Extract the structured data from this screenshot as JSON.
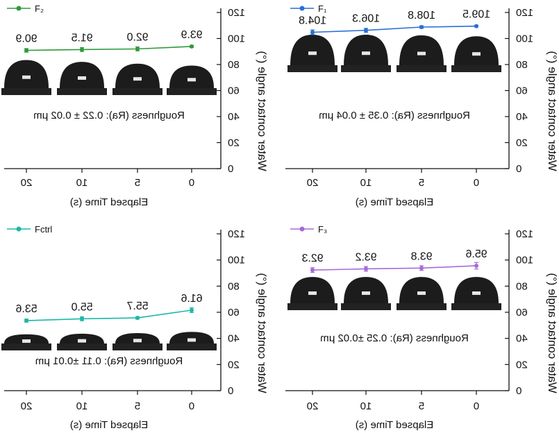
{
  "chart_data": [
    {
      "type": "line",
      "panel": "top-left",
      "legend": "F₂",
      "color": "#2e9a3a",
      "x": [
        0,
        5,
        10,
        20
      ],
      "x_tick_labels": [
        "0",
        "5",
        "10",
        "20"
      ],
      "values": [
        93.9,
        92.0,
        91.5,
        90.9
      ],
      "value_labels": [
        "93.9",
        "92.0",
        "91.5",
        "90.9"
      ],
      "errors": [
        0.8,
        1.5,
        1.5,
        1.4
      ],
      "roughness_text": "Roughness (Ra): 0.22 ± 0.02 μm",
      "xlabel": "Elapsed Time (s)",
      "ylabel": "Water contact angle (°)",
      "ylim": [
        0,
        120
      ],
      "yticks": [
        0,
        20,
        40,
        60,
        80,
        100,
        120
      ],
      "droplet_height": [
        0.74,
        0.8,
        0.86,
        0.92
      ]
    },
    {
      "type": "line",
      "panel": "top-right",
      "legend": "F₁",
      "color": "#2a6fd6",
      "x": [
        0,
        5,
        10,
        20
      ],
      "x_tick_labels": [
        "0",
        "5",
        "10",
        "20"
      ],
      "values": [
        109.5,
        108.8,
        106.3,
        104.8
      ],
      "value_labels": [
        "109.5",
        "108.8",
        "106.3",
        "104.8"
      ],
      "errors": [
        0.7,
        1.0,
        1.5,
        1.8
      ],
      "roughness_text": "Roughness (Ra): 0.35 ± 0.04 μm",
      "xlabel": "Elapsed Time (s)",
      "ylabel": "Water contact angle (°)",
      "ylim": [
        0,
        120
      ],
      "yticks": [
        0,
        20,
        40,
        60,
        80,
        100,
        120
      ],
      "droplet_height": [
        0.95,
        0.98,
        1.0,
        1.0
      ]
    },
    {
      "type": "line",
      "panel": "bottom-left",
      "legend": "Fctrl",
      "color": "#19b8a6",
      "x": [
        0,
        5,
        10,
        20
      ],
      "x_tick_labels": [
        "0",
        "5",
        "10",
        "20"
      ],
      "values": [
        61.6,
        55.7,
        55.0,
        53.6
      ],
      "value_labels": [
        "61.6",
        "55.7",
        "55.0",
        "53.6"
      ],
      "errors": [
        1.8,
        0.9,
        1.5,
        1.2
      ],
      "roughness_text": "Roughness (Ra): 0.11 ±0.01 μm",
      "xlabel": "Elapsed Time (s)",
      "ylabel": "Water contact angle (°)",
      "ylim": [
        0,
        120
      ],
      "yticks": [
        0,
        20,
        40,
        60,
        80,
        100,
        120
      ],
      "droplet_height": [
        0.38,
        0.34,
        0.32,
        0.3
      ]
    },
    {
      "type": "line",
      "panel": "bottom-right",
      "legend": "F₃",
      "color": "#a86ad6",
      "x": [
        0,
        5,
        10,
        20
      ],
      "x_tick_labels": [
        "0",
        "5",
        "10",
        "20"
      ],
      "values": [
        95.6,
        93.8,
        93.2,
        92.3
      ],
      "value_labels": [
        "95.6",
        "93.8",
        "93.2",
        "92.3"
      ],
      "errors": [
        2.5,
        1.8,
        1.8,
        1.8
      ],
      "roughness_text": "Roughness (Ra): 0.25 ±0.02 μm",
      "xlabel": "Elapsed Time (s)",
      "ylabel": "Water contact angle (°)",
      "ylim": [
        0,
        120
      ],
      "yticks": [
        0,
        20,
        40,
        60,
        80,
        100,
        120
      ],
      "droplet_height": [
        0.86,
        0.86,
        0.86,
        0.86
      ]
    }
  ]
}
